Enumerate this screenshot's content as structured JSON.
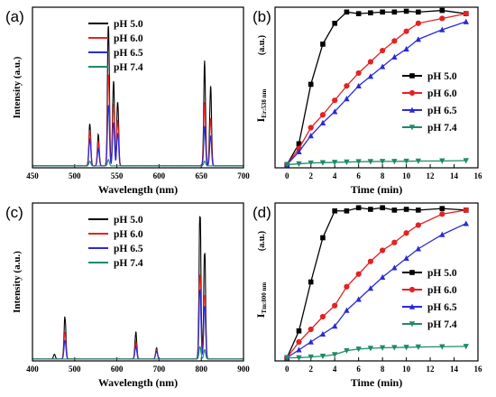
{
  "colors": {
    "pH 5.0": "#000000",
    "pH 6.0": "#e32222",
    "pH 6.5": "#2a2ad8",
    "pH 7.4": "#1e8a6a"
  },
  "chart_data": [
    {
      "panel": "(a)",
      "type": "line",
      "xlabel": "Wavelength (nm)",
      "ylabel": "Intensity (a.u.)",
      "xlim": [
        450,
        700
      ],
      "xticks": [
        450,
        500,
        550,
        600,
        650,
        700
      ],
      "ylim": [
        0,
        1.0
      ],
      "yticks_shown": false,
      "legend_position": "top-left",
      "legend_labels": [
        "pH 5.0",
        "pH 6.0",
        "pH 6.5",
        "pH 7.4"
      ],
      "series": [
        {
          "name": "pH 5.0",
          "peaks": [
            [
              518,
              0.27
            ],
            [
              528,
              0.19
            ],
            [
              540,
              0.92
            ],
            [
              546,
              0.55
            ],
            [
              551,
              0.42
            ],
            [
              654,
              0.63
            ],
            [
              661,
              0.5
            ]
          ]
        },
        {
          "name": "pH 6.0",
          "peaks": [
            [
              518,
              0.23
            ],
            [
              528,
              0.15
            ],
            [
              540,
              0.6
            ],
            [
              546,
              0.4
            ],
            [
              551,
              0.3
            ],
            [
              654,
              0.38
            ],
            [
              661,
              0.3
            ]
          ]
        },
        {
          "name": "pH 6.5",
          "peaks": [
            [
              518,
              0.17
            ],
            [
              528,
              0.11
            ],
            [
              540,
              0.4
            ],
            [
              546,
              0.28
            ],
            [
              551,
              0.21
            ],
            [
              654,
              0.24
            ],
            [
              661,
              0.19
            ]
          ]
        },
        {
          "name": "pH 7.4",
          "peaks": [
            [
              518,
              0.03
            ],
            [
              540,
              0.04
            ],
            [
              654,
              0.03
            ]
          ]
        }
      ]
    },
    {
      "panel": "(b)",
      "type": "line",
      "xlabel": "Time (min)",
      "ylabel_main": "I",
      "ylabel_sub": "Er:538 nm",
      "ylabel_unit": "(a.u.)",
      "xlim": [
        -1,
        16
      ],
      "xticks": [
        0,
        2,
        4,
        6,
        8,
        10,
        12,
        14,
        16
      ],
      "ylim": [
        0,
        1.0
      ],
      "yticks_shown": false,
      "legend_position": "center-right",
      "series": [
        {
          "name": "pH 5.0",
          "marker": "square",
          "x": [
            0,
            1,
            2,
            3,
            4,
            5,
            6,
            7,
            8,
            9,
            10,
            11,
            13,
            15
          ],
          "y": [
            0.02,
            0.15,
            0.52,
            0.77,
            0.9,
            0.97,
            0.96,
            0.965,
            0.97,
            0.97,
            0.975,
            0.97,
            0.98,
            0.96
          ]
        },
        {
          "name": "pH 6.0",
          "marker": "circle",
          "x": [
            0,
            1,
            2,
            3,
            4,
            5,
            6,
            7,
            8,
            9,
            10,
            11,
            13,
            15
          ],
          "y": [
            0.02,
            0.12,
            0.25,
            0.33,
            0.42,
            0.51,
            0.59,
            0.66,
            0.73,
            0.79,
            0.85,
            0.9,
            0.93,
            0.96
          ]
        },
        {
          "name": "pH 6.5",
          "marker": "triangle-up",
          "x": [
            0,
            1,
            2,
            3,
            4,
            5,
            6,
            7,
            8,
            9,
            10,
            11,
            13,
            15
          ],
          "y": [
            0.02,
            0.1,
            0.2,
            0.28,
            0.35,
            0.43,
            0.51,
            0.57,
            0.63,
            0.69,
            0.74,
            0.8,
            0.86,
            0.91
          ]
        },
        {
          "name": "pH 7.4",
          "marker": "triangle-down",
          "x": [
            0,
            1,
            2,
            3,
            4,
            5,
            6,
            7,
            8,
            9,
            10,
            11,
            13,
            15
          ],
          "y": [
            0.02,
            0.025,
            0.03,
            0.032,
            0.034,
            0.036,
            0.038,
            0.039,
            0.04,
            0.04,
            0.041,
            0.042,
            0.043,
            0.045
          ]
        }
      ]
    },
    {
      "panel": "(c)",
      "type": "line",
      "xlabel": "Wavelength (nm)",
      "ylabel": "Intensity (a.u.)",
      "xlim": [
        400,
        900
      ],
      "xticks": [
        400,
        500,
        600,
        700,
        800,
        900
      ],
      "ylim": [
        0,
        1.0
      ],
      "yticks_shown": false,
      "legend_position": "top-left",
      "legend_labels": [
        "pH 5.0",
        "pH 6.0",
        "pH 6.5",
        "pH 7.4"
      ],
      "series": [
        {
          "name": "pH 5.0",
          "peaks": [
            [
              452,
              0.03
            ],
            [
              477,
              0.27
            ],
            [
              645,
              0.17
            ],
            [
              694,
              0.07
            ],
            [
              797,
              0.95
            ],
            [
              808,
              0.7
            ]
          ]
        },
        {
          "name": "pH 6.0",
          "peaks": [
            [
              477,
              0.17
            ],
            [
              645,
              0.11
            ],
            [
              694,
              0.06
            ],
            [
              797,
              0.56
            ],
            [
              808,
              0.42
            ]
          ]
        },
        {
          "name": "pH 6.5",
          "peaks": [
            [
              477,
              0.12
            ],
            [
              645,
              0.08
            ],
            [
              694,
              0.05
            ],
            [
              797,
              0.46
            ],
            [
              808,
              0.35
            ]
          ]
        },
        {
          "name": "pH 7.4",
          "peaks": [
            [
              797,
              0.08
            ],
            [
              808,
              0.06
            ]
          ]
        }
      ]
    },
    {
      "panel": "(d)",
      "type": "line",
      "xlabel": "Time (min)",
      "ylabel_main": "I",
      "ylabel_sub": "Tm:800 nm",
      "ylabel_unit": "(a.u.)",
      "xlim": [
        -1,
        16
      ],
      "xticks": [
        0,
        2,
        4,
        6,
        8,
        10,
        12,
        14,
        16
      ],
      "ylim": [
        0,
        1.0
      ],
      "yticks_shown": false,
      "legend_position": "center-right",
      "series": [
        {
          "name": "pH 5.0",
          "marker": "square",
          "x": [
            0,
            1,
            2,
            3,
            4,
            5,
            6,
            7,
            8,
            9,
            10,
            11,
            13,
            15
          ],
          "y": [
            0.02,
            0.19,
            0.5,
            0.78,
            0.95,
            0.95,
            0.97,
            0.96,
            0.97,
            0.955,
            0.96,
            0.955,
            0.965,
            0.955
          ]
        },
        {
          "name": "pH 6.0",
          "marker": "circle",
          "x": [
            0,
            1,
            2,
            3,
            4,
            5,
            6,
            7,
            8,
            9,
            10,
            11,
            13,
            15
          ],
          "y": [
            0.02,
            0.12,
            0.2,
            0.28,
            0.35,
            0.47,
            0.55,
            0.63,
            0.7,
            0.75,
            0.81,
            0.86,
            0.93,
            0.955
          ]
        },
        {
          "name": "pH 6.5",
          "marker": "triangle-up",
          "x": [
            0,
            1,
            2,
            3,
            4,
            5,
            6,
            7,
            8,
            9,
            10,
            11,
            13,
            15
          ],
          "y": [
            0.02,
            0.07,
            0.12,
            0.17,
            0.22,
            0.32,
            0.39,
            0.46,
            0.53,
            0.59,
            0.65,
            0.71,
            0.8,
            0.87
          ]
        },
        {
          "name": "pH 7.4",
          "marker": "triangle-down",
          "x": [
            0,
            1,
            2,
            3,
            4,
            5,
            6,
            7,
            8,
            9,
            10,
            11,
            13,
            15
          ],
          "y": [
            0.02,
            0.02,
            0.025,
            0.03,
            0.04,
            0.065,
            0.075,
            0.08,
            0.083,
            0.085,
            0.086,
            0.088,
            0.09,
            0.092
          ]
        }
      ]
    }
  ]
}
